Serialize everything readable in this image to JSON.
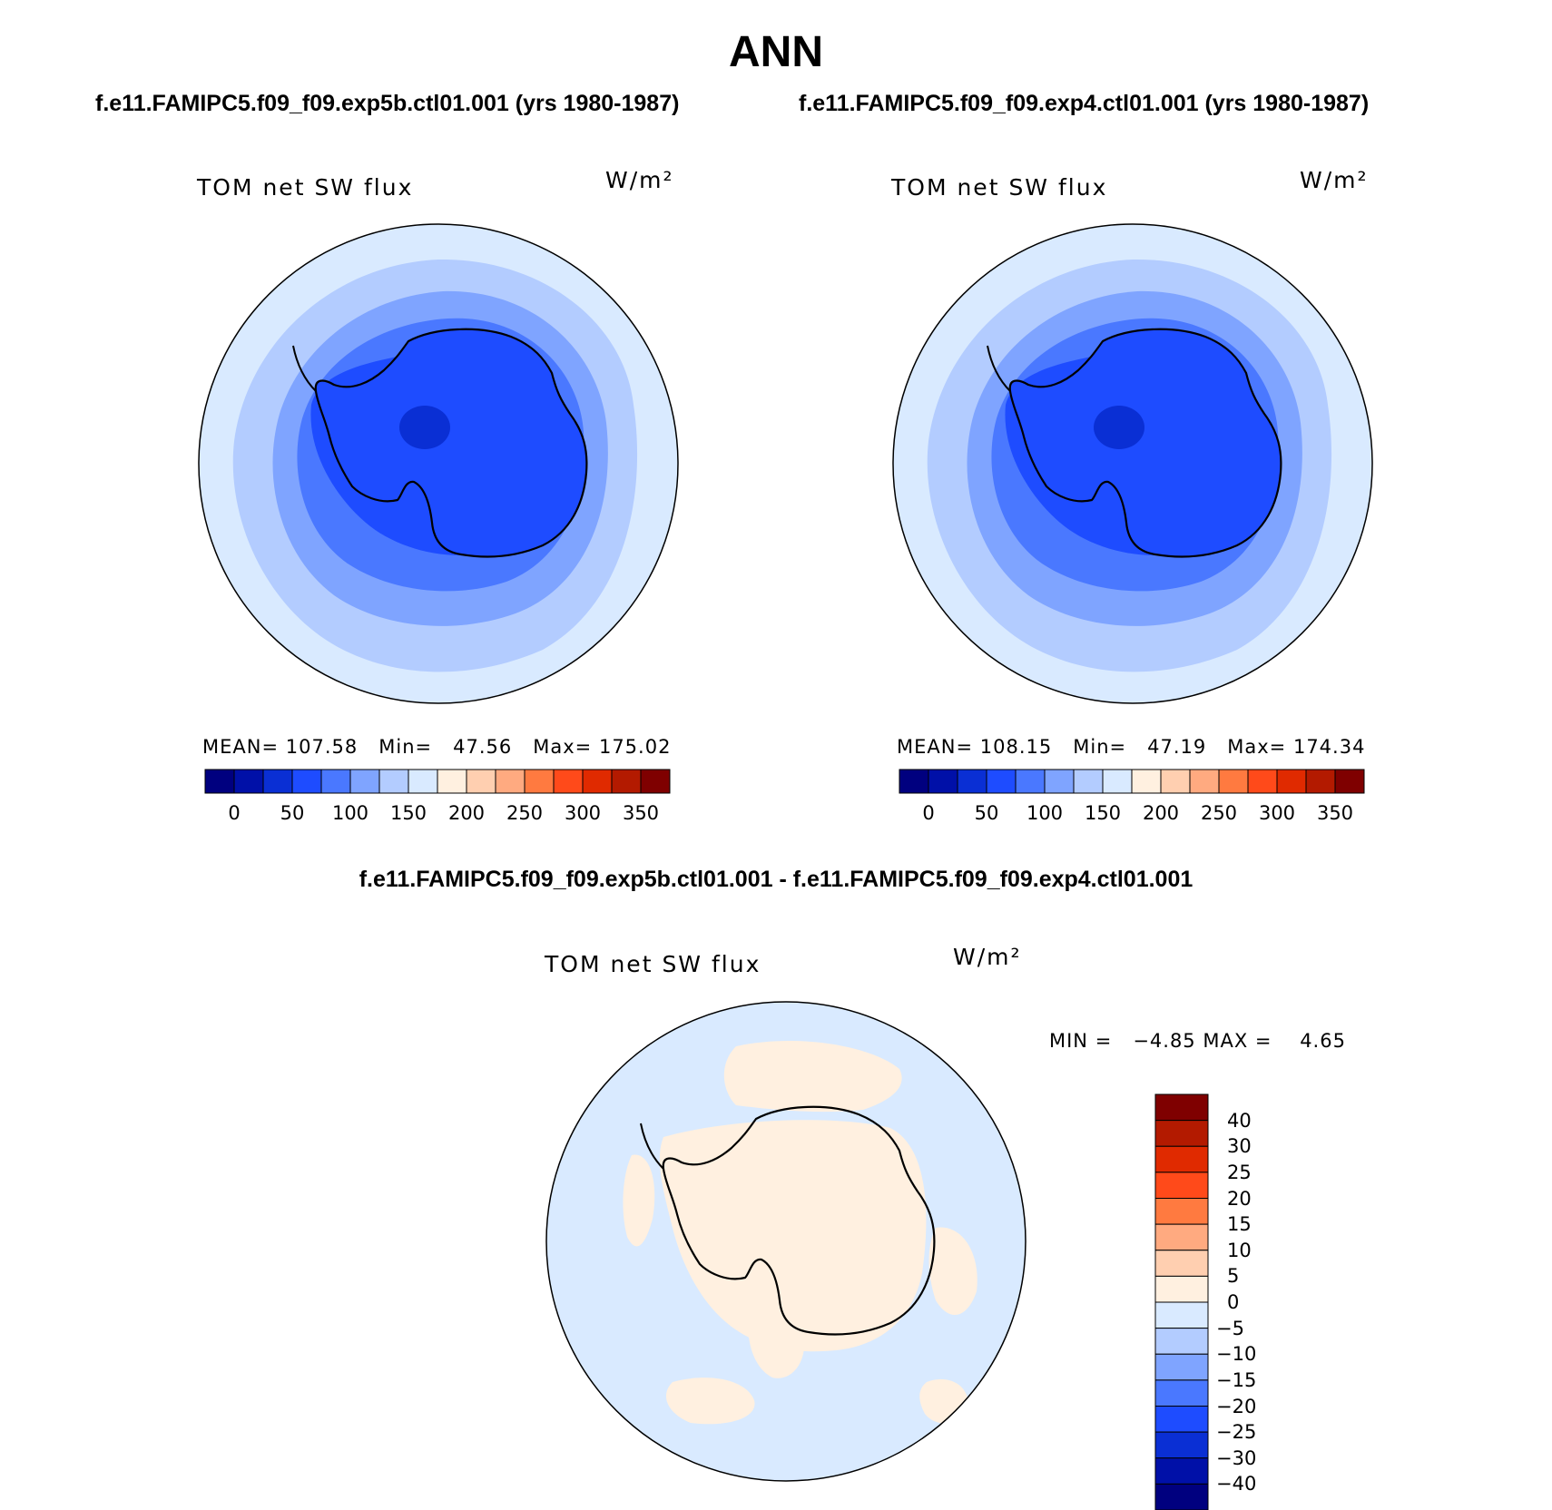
{
  "main_title": "ANN",
  "panels": [
    {
      "case_title": "f.e11.FAMIPC5.f09_f09.exp5b.ctl01.001 (yrs 1980-1987)",
      "variable": "TOM net SW flux",
      "units": "W/m²",
      "stats": "MEAN= 107.58   Min=   47.56   Max= 175.02"
    },
    {
      "case_title": "f.e11.FAMIPC5.f09_f09.exp4.ctl01.001 (yrs 1980-1987)",
      "variable": "TOM net SW flux",
      "units": "W/m²",
      "stats": "MEAN= 108.15   Min=   47.19   Max= 174.34"
    }
  ],
  "diff_panel": {
    "title": "f.e11.FAMIPC5.f09_f09.exp5b.ctl01.001 - f.e11.FAMIPC5.f09_f09.exp4.ctl01.001",
    "variable": "TOM net SW flux",
    "units": "W/m²",
    "stats": "MIN =   −4.85 MAX =    4.65"
  },
  "colorbar_top": {
    "colors": [
      "#00007f",
      "#0010a8",
      "#0a2fd4",
      "#1e4cff",
      "#4a78ff",
      "#7fa4ff",
      "#b3ccff",
      "#d9eaff",
      "#fff0e0",
      "#ffcfb0",
      "#ffaa80",
      "#ff7a40",
      "#ff4a1a",
      "#e02a00",
      "#b31a00",
      "#7f0000"
    ],
    "labels": [
      "0",
      "50",
      "100",
      "150",
      "200",
      "250",
      "300",
      "350"
    ]
  },
  "colorbar_diff": {
    "colors": [
      "#00007f",
      "#0010a8",
      "#0a2fd4",
      "#1e4cff",
      "#4a78ff",
      "#7fa4ff",
      "#b3ccff",
      "#d9eaff",
      "#fff0e0",
      "#ffcfb0",
      "#ffaa80",
      "#ff7a40",
      "#ff4a1a",
      "#e02a00",
      "#b31a00",
      "#7f0000"
    ],
    "labels": [
      "40",
      "30",
      "25",
      "20",
      "15",
      "10",
      "5",
      "0",
      "−5",
      "−10",
      "−15",
      "−20",
      "−25",
      "−30",
      "−40"
    ]
  }
}
